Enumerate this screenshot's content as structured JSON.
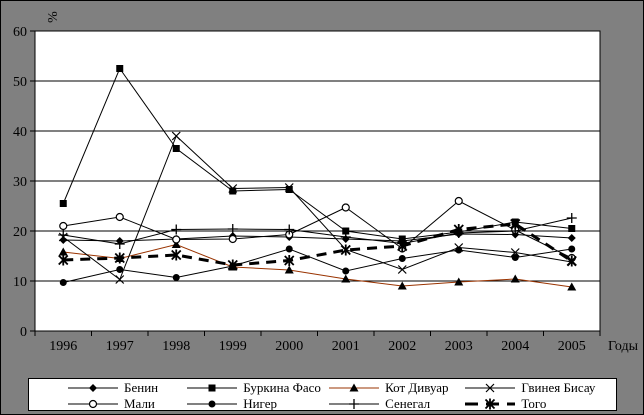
{
  "colors": {
    "background": "#808080",
    "plot_background": "#ffffff",
    "axis": "#000000",
    "cote_divoire_line": "#993300"
  },
  "chart_data": {
    "type": "line",
    "title": "",
    "ylabel": "%",
    "xlabel": "Годы",
    "ylim": [
      0,
      60
    ],
    "yticks": [
      0,
      10,
      20,
      30,
      40,
      50,
      60
    ],
    "grid": "horizontal",
    "legend_position": "bottom",
    "categories": [
      "1996",
      "1997",
      "1998",
      "1999",
      "2000",
      "2001",
      "2002",
      "2003",
      "2004",
      "2005"
    ],
    "series": [
      {
        "name": "Бенин",
        "marker": "diamond",
        "color": "#000000",
        "line": "solid",
        "width": 1,
        "values": [
          18.2,
          18.0,
          18.4,
          19.0,
          18.8,
          18.4,
          18.0,
          19.4,
          19.3,
          18.6
        ]
      },
      {
        "name": "Буркина Фасо",
        "marker": "square",
        "color": "#000000",
        "line": "solid",
        "width": 1,
        "values": [
          25.5,
          52.5,
          36.5,
          28.0,
          28.3,
          20.0,
          18.4,
          19.8,
          21.8,
          20.5
        ]
      },
      {
        "name": "Кот Дивуар",
        "marker": "triangle",
        "color": "#993300",
        "line": "solid",
        "width": 1,
        "values": [
          15.8,
          14.5,
          17.3,
          12.8,
          12.2,
          10.4,
          9.0,
          9.8,
          10.4,
          8.8
        ]
      },
      {
        "name": "Гвинея Бисау",
        "marker": "x",
        "color": "#000000",
        "line": "solid",
        "width": 1,
        "values": [
          18.8,
          10.3,
          39.0,
          28.5,
          28.7,
          16.3,
          12.3,
          16.7,
          15.7,
          13.8
        ]
      },
      {
        "name": "Мали",
        "marker": "circle-open",
        "color": "#000000",
        "line": "solid",
        "width": 1,
        "values": [
          21.0,
          22.8,
          18.3,
          18.4,
          19.3,
          24.7,
          16.5,
          26.0,
          20.2,
          14.6
        ]
      },
      {
        "name": "Нигер",
        "marker": "circle-filled",
        "color": "#000000",
        "line": "solid",
        "width": 1,
        "values": [
          9.7,
          12.3,
          10.7,
          13.0,
          16.4,
          12.0,
          14.5,
          16.2,
          14.7,
          16.4
        ]
      },
      {
        "name": "Сенегал",
        "marker": "plus",
        "color": "#000000",
        "line": "solid",
        "width": 1,
        "values": [
          19.2,
          17.4,
          20.3,
          20.4,
          20.3,
          18.8,
          17.5,
          19.6,
          20.0,
          22.6
        ]
      },
      {
        "name": "Того",
        "marker": "star6",
        "color": "#000000",
        "line": "dashed",
        "width": 3,
        "values": [
          14.2,
          14.6,
          15.2,
          13.2,
          14.1,
          16.2,
          17.0,
          20.3,
          21.4,
          14.0
        ]
      }
    ]
  }
}
